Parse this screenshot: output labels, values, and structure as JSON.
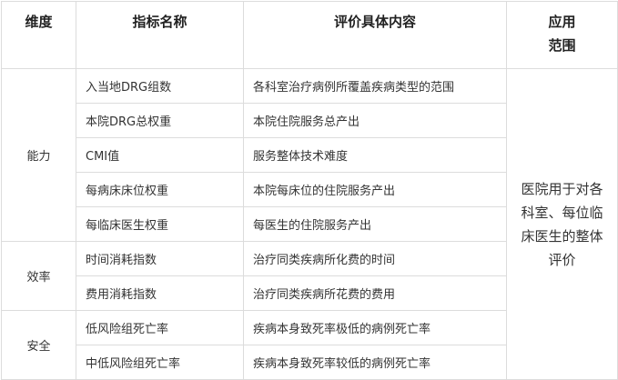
{
  "headers": {
    "dimension": "维度",
    "name": "指标名称",
    "content": "评价具体内容",
    "scope_line1": "应用",
    "scope_line2": "范围"
  },
  "rows": [
    {
      "dimension": "能力",
      "name": "入当地DRG组数",
      "content": "各科室治疗病例所覆盖疾病类型的范围"
    },
    {
      "name": "本院DRG总权重",
      "content": "本院住院服务总产出"
    },
    {
      "name": "CMI值",
      "content": "服务整体技术难度"
    },
    {
      "name": "每病床床位权重",
      "content": "本院每床位的住院服务产出"
    },
    {
      "name": "每临床医生权重",
      "content": "每医生的住院服务产出"
    },
    {
      "dimension": "效率",
      "name": "时间消耗指数",
      "content": "治疗同类疾病所化费的时间"
    },
    {
      "name": "费用消耗指数",
      "content": "治疗同类疾病所花费的费用"
    },
    {
      "dimension": "安全",
      "name": "低风险组死亡率",
      "content": "疾病本身致死率极低的病例死亡率"
    },
    {
      "name": "中低风险组死亡率",
      "content": "疾病本身致死率较低的病例死亡率"
    }
  ],
  "scope": "医院用于对各科室、每位临床医生的整体评价"
}
